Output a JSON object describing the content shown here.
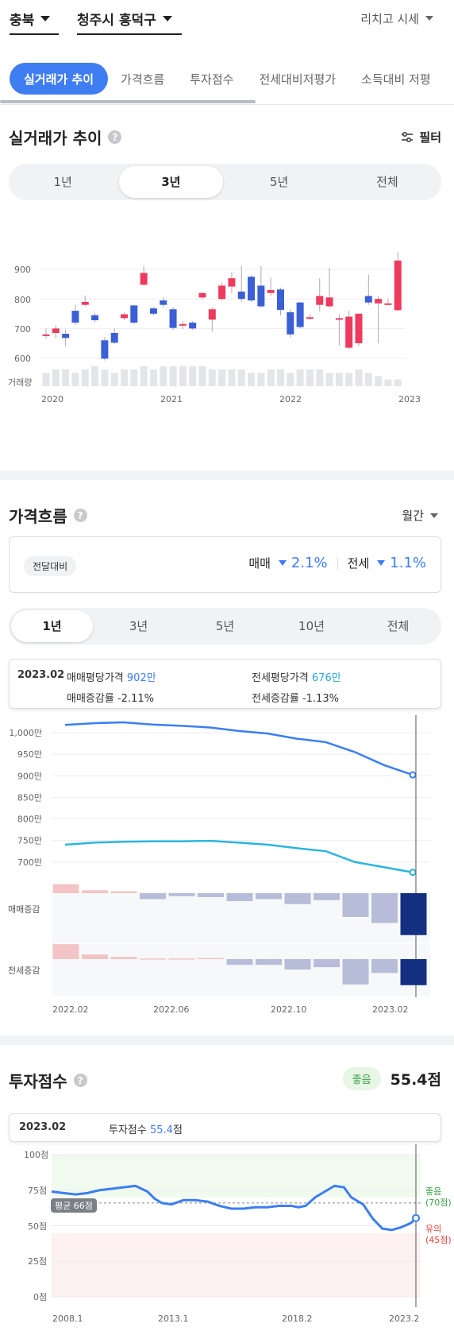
{
  "header": {
    "province": "충북",
    "district": "청주시 흥덕구",
    "market_menu": "리치고 시세"
  },
  "tabs": [
    {
      "label": "실거래가 추이",
      "active": true
    },
    {
      "label": "가격흐름",
      "active": false
    },
    {
      "label": "투자점수",
      "active": false
    },
    {
      "label": "전세대비저평가",
      "active": false
    },
    {
      "label": "소득대비 저평",
      "active": false
    }
  ],
  "section_trade": {
    "title": "실거래가 추이",
    "filter_label": "필터",
    "ranges": [
      "1년",
      "3년",
      "5년",
      "전체"
    ],
    "active_range": "3년",
    "chart_data": {
      "type": "candlestick",
      "y_ticks": [
        "900",
        "800",
        "700",
        "600"
      ],
      "volume_label": "거래량",
      "x_ticks": [
        "2020",
        "2021",
        "2022",
        "2023"
      ],
      "ylim": [
        580,
        1000
      ],
      "candles": [
        {
          "o": 680,
          "c": 680,
          "h": 700,
          "l": 665
        },
        {
          "o": 685,
          "c": 700,
          "h": 712,
          "l": 668
        },
        {
          "o": 682,
          "c": 668,
          "h": 695,
          "l": 640
        },
        {
          "o": 760,
          "c": 720,
          "h": 780,
          "l": 712
        },
        {
          "o": 780,
          "c": 790,
          "h": 812,
          "l": 775
        },
        {
          "o": 745,
          "c": 728,
          "h": 752,
          "l": 720
        },
        {
          "o": 660,
          "c": 598,
          "h": 670,
          "l": 592
        },
        {
          "o": 685,
          "c": 652,
          "h": 700,
          "l": 648
        },
        {
          "o": 735,
          "c": 748,
          "h": 755,
          "l": 728
        },
        {
          "o": 778,
          "c": 720,
          "h": 780,
          "l": 715
        },
        {
          "o": 848,
          "c": 888,
          "h": 912,
          "l": 845
        },
        {
          "o": 768,
          "c": 750,
          "h": 772,
          "l": 745
        },
        {
          "o": 795,
          "c": 780,
          "h": 805,
          "l": 770
        },
        {
          "o": 765,
          "c": 702,
          "h": 772,
          "l": 695
        },
        {
          "o": 715,
          "c": 715,
          "h": 725,
          "l": 698
        },
        {
          "o": 720,
          "c": 700,
          "h": 725,
          "l": 695
        },
        {
          "o": 805,
          "c": 820,
          "h": 822,
          "l": 800
        },
        {
          "o": 730,
          "c": 765,
          "h": 772,
          "l": 690
        },
        {
          "o": 800,
          "c": 845,
          "h": 855,
          "l": 795
        },
        {
          "o": 842,
          "c": 870,
          "h": 890,
          "l": 820
        },
        {
          "o": 825,
          "c": 800,
          "h": 912,
          "l": 790
        },
        {
          "o": 875,
          "c": 795,
          "h": 880,
          "l": 790
        },
        {
          "o": 845,
          "c": 775,
          "h": 912,
          "l": 770
        },
        {
          "o": 820,
          "c": 830,
          "h": 872,
          "l": 810
        },
        {
          "o": 832,
          "c": 763,
          "h": 838,
          "l": 745
        },
        {
          "o": 755,
          "c": 680,
          "h": 765,
          "l": 670
        },
        {
          "o": 788,
          "c": 705,
          "h": 790,
          "l": 700
        },
        {
          "o": 738,
          "c": 738,
          "h": 748,
          "l": 730
        },
        {
          "o": 780,
          "c": 810,
          "h": 870,
          "l": 758
        },
        {
          "o": 775,
          "c": 805,
          "h": 905,
          "l": 770
        },
        {
          "o": 735,
          "c": 735,
          "h": 748,
          "l": 642
        },
        {
          "o": 635,
          "c": 740,
          "h": 760,
          "l": 630
        },
        {
          "o": 650,
          "c": 750,
          "h": 750,
          "l": 640
        },
        {
          "o": 810,
          "c": 788,
          "h": 882,
          "l": 780
        },
        {
          "o": 785,
          "c": 800,
          "h": 810,
          "l": 650
        },
        {
          "o": 785,
          "c": 785,
          "h": 800,
          "l": 782
        },
        {
          "o": 762,
          "c": 930,
          "h": 958,
          "l": 760
        }
      ],
      "volumes": [
        4,
        5,
        5,
        4,
        5,
        6,
        5,
        4,
        5,
        5,
        6,
        5,
        6,
        6,
        6,
        6,
        6,
        5,
        5,
        5,
        5,
        4,
        4,
        5,
        5,
        4,
        5,
        5,
        5,
        4,
        4,
        4,
        5,
        4,
        3,
        2,
        2
      ]
    }
  },
  "section_flow": {
    "title": "가격흐름",
    "period_menu": "월간",
    "compare_badge": "전달대비",
    "sale_label": "매매",
    "sale_change": "2.1%",
    "jeonse_label": "전세",
    "jeonse_change": "1.1%",
    "ranges": [
      "1년",
      "3년",
      "5년",
      "10년",
      "전체"
    ],
    "active_range": "1년",
    "tooltip": {
      "date": "2023.02",
      "sale_price_label": "매매평당가격",
      "sale_price_value": "902만",
      "jeonse_price_label": "전세평당가격",
      "jeonse_price_value": "676만",
      "sale_rate_label": "매매증감률",
      "sale_rate_value": "-2.11%",
      "jeonse_rate_label": "전세증감률",
      "jeonse_rate_value": "-1.13%"
    },
    "chart_data": {
      "type": "line",
      "x": [
        "2022.02",
        "2022.03",
        "2022.04",
        "2022.05",
        "2022.06",
        "2022.07",
        "2022.08",
        "2022.09",
        "2022.10",
        "2022.11",
        "2022.12",
        "2023.01",
        "2023.02"
      ],
      "x_ticks": [
        "2022.02",
        "2022.06",
        "2022.10",
        "2023.02"
      ],
      "y_ticks": [
        "1,000만",
        "950만",
        "900만",
        "850만",
        "800만",
        "750만",
        "700만"
      ],
      "ylim": [
        690,
        1020
      ],
      "series": [
        {
          "name": "매매평당가격",
          "color": "#3b7ef2",
          "values": [
            1018,
            1022,
            1024,
            1019,
            1016,
            1012,
            1004,
            998,
            986,
            978,
            955,
            925,
            902
          ]
        },
        {
          "name": "전세평당가격",
          "color": "#2bb5e0",
          "values": [
            740,
            745,
            747,
            748,
            748,
            749,
            745,
            740,
            732,
            725,
            700,
            688,
            676
          ]
        }
      ],
      "sale_rate_label": "매매증감",
      "sale_rates": [
        0.45,
        0.15,
        0.1,
        -0.3,
        -0.15,
        -0.2,
        -0.4,
        -0.3,
        -0.55,
        -0.35,
        -1.2,
        -1.5,
        -2.11
      ],
      "jeonse_rate_label": "전세증감",
      "jeonse_rates": [
        0.65,
        0.2,
        0.1,
        0.03,
        0.03,
        0.05,
        -0.25,
        -0.25,
        -0.45,
        -0.35,
        -1.1,
        -0.6,
        -1.13
      ]
    }
  },
  "section_invest": {
    "title": "투자점수",
    "grade_badge": "좋음",
    "score": "55.4점",
    "tooltip_date": "2023.02",
    "tooltip_label": "투자점수",
    "tooltip_value": "55.4",
    "tooltip_unit": "점",
    "avg_label": "평균 66점",
    "good_label": "좋음",
    "good_value": "(70점)",
    "caution_label": "유의",
    "caution_value": "(45점)",
    "colors": {
      "good": "#3aa14a",
      "caution": "#e0443a",
      "line": "#3b7ef2"
    },
    "chart_data": {
      "type": "line",
      "y_ticks": [
        "100점",
        "75점",
        "50점",
        "25점",
        "0점"
      ],
      "x_ticks": [
        "2008.1",
        "2013.1",
        "2018.2",
        "2023.2"
      ],
      "ylim": [
        0,
        100
      ],
      "average": 66,
      "thresholds": {
        "good": 70,
        "caution": 45
      },
      "x_range": [
        2008.0,
        2023.2
      ],
      "series": [
        {
          "name": "투자점수",
          "points": [
            [
              2008.0,
              74
            ],
            [
              2008.5,
              73
            ],
            [
              2009.0,
              72
            ],
            [
              2009.5,
              73
            ],
            [
              2010.0,
              75
            ],
            [
              2010.5,
              76
            ],
            [
              2011.0,
              77
            ],
            [
              2011.5,
              78
            ],
            [
              2012.0,
              74
            ],
            [
              2012.3,
              69
            ],
            [
              2012.6,
              66
            ],
            [
              2013.0,
              65
            ],
            [
              2013.5,
              68
            ],
            [
              2014.0,
              68
            ],
            [
              2014.5,
              67
            ],
            [
              2015.0,
              64
            ],
            [
              2015.5,
              62
            ],
            [
              2016.0,
              62
            ],
            [
              2016.5,
              63
            ],
            [
              2017.0,
              63
            ],
            [
              2017.5,
              64
            ],
            [
              2018.0,
              64
            ],
            [
              2018.3,
              63
            ],
            [
              2018.6,
              64
            ],
            [
              2019.0,
              70
            ],
            [
              2019.5,
              75
            ],
            [
              2019.8,
              78
            ],
            [
              2020.2,
              77
            ],
            [
              2020.5,
              70
            ],
            [
              2021.0,
              65
            ],
            [
              2021.4,
              55
            ],
            [
              2021.8,
              48
            ],
            [
              2022.2,
              47
            ],
            [
              2022.6,
              49
            ],
            [
              2023.0,
              52
            ],
            [
              2023.2,
              55.4
            ]
          ]
        }
      ]
    }
  }
}
